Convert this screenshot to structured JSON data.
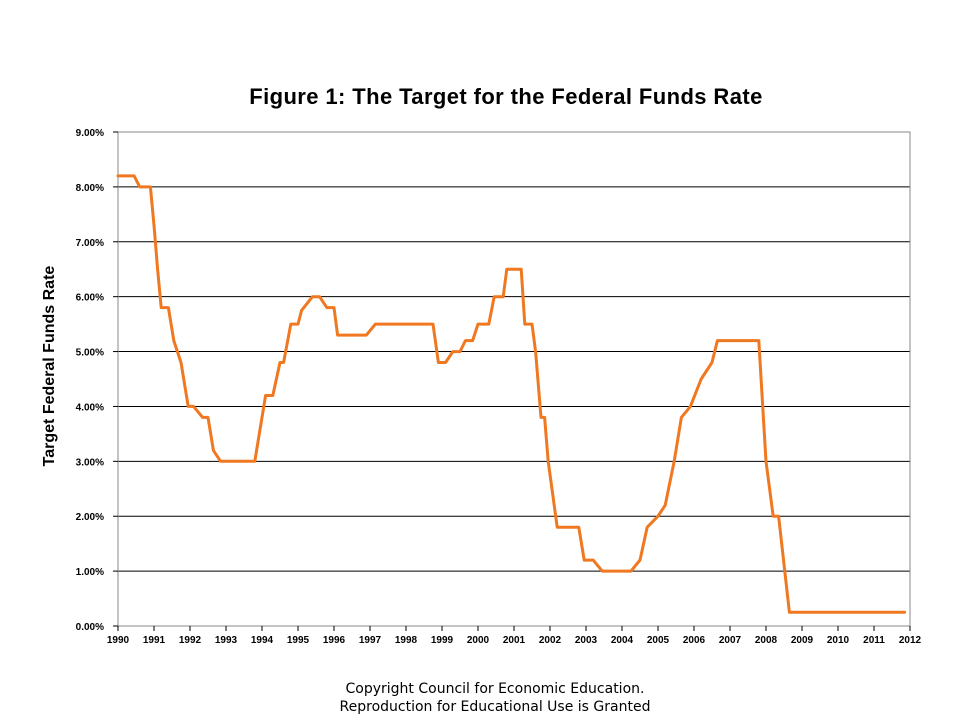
{
  "chart_data": {
    "type": "line",
    "title": "Figure 1: The Target for the Federal Funds Rate",
    "xlabel": "",
    "ylabel": "Target Federal Funds Rate",
    "xlim": [
      1990,
      2012
    ],
    "ylim": [
      0,
      9
    ],
    "x_ticks": [
      "1990",
      "1991",
      "1992",
      "1993",
      "1994",
      "1995",
      "1996",
      "1997",
      "1998",
      "1999",
      "2000",
      "2001",
      "2002",
      "2003",
      "2004",
      "2005",
      "2006",
      "2007",
      "2008",
      "2009",
      "2010",
      "2011",
      "2012"
    ],
    "y_ticks": [
      "0.00%",
      "1.00%",
      "2.00%",
      "3.00%",
      "4.00%",
      "5.00%",
      "6.00%",
      "7.00%",
      "8.00%",
      "9.00%"
    ],
    "grid": "horizontal",
    "series_color": "#F07820",
    "series": [
      {
        "x": [
          1990.0,
          1990.45,
          1990.6,
          1990.9,
          1991.0,
          1991.1,
          1991.2,
          1991.4,
          1991.55,
          1991.75,
          1991.95,
          1992.1,
          1992.35,
          1992.5,
          1992.65,
          1992.85,
          1993.0,
          1993.8,
          1994.1,
          1994.15,
          1994.3,
          1994.5,
          1994.6,
          1994.8,
          1995.0,
          1995.1,
          1995.4,
          1995.6,
          1995.8,
          1996.0,
          1996.1,
          1996.3,
          1996.9,
          1997.15,
          1997.3,
          1998.75,
          1998.9,
          1999.1,
          1999.3,
          1999.5,
          1999.65,
          1999.85,
          2000.0,
          2000.3,
          2000.45,
          2000.7,
          2000.8,
          2001.2,
          2001.3,
          2001.5,
          2001.6,
          2001.75,
          2001.85,
          2001.95,
          2002.2,
          2002.8,
          2002.95,
          2003.2,
          2003.45,
          2004.25,
          2004.5,
          2004.7,
          2005.0,
          2005.2,
          2005.45,
          2005.65,
          2005.9,
          2006.2,
          2006.5,
          2006.65,
          2007.6,
          2007.8,
          2008.0,
          2008.2,
          2008.35,
          2008.65,
          2011.85
        ],
        "y": [
          8.2,
          8.2,
          8.0,
          8.0,
          7.3,
          6.5,
          5.8,
          5.8,
          5.2,
          4.8,
          4.0,
          4.0,
          3.8,
          3.8,
          3.2,
          3.0,
          3.0,
          3.0,
          4.2,
          4.2,
          4.2,
          4.8,
          4.8,
          5.5,
          5.5,
          5.75,
          6.0,
          6.0,
          5.8,
          5.8,
          5.3,
          5.3,
          5.3,
          5.5,
          5.5,
          5.5,
          4.8,
          4.8,
          5.0,
          5.0,
          5.2,
          5.2,
          5.5,
          5.5,
          6.0,
          6.0,
          6.5,
          6.5,
          5.5,
          5.5,
          5.0,
          3.8,
          3.8,
          3.0,
          1.8,
          1.8,
          1.2,
          1.2,
          1.0,
          1.0,
          1.2,
          1.8,
          2.0,
          2.2,
          3.0,
          3.8,
          4.0,
          4.5,
          4.8,
          5.2,
          5.2,
          5.2,
          3.0,
          2.0,
          2.0,
          0.25,
          0.25
        ]
      }
    ]
  },
  "copyright": {
    "line1": "Copyright Council for Economic Education.",
    "line2": "Reproduction for Educational Use is Granted"
  }
}
